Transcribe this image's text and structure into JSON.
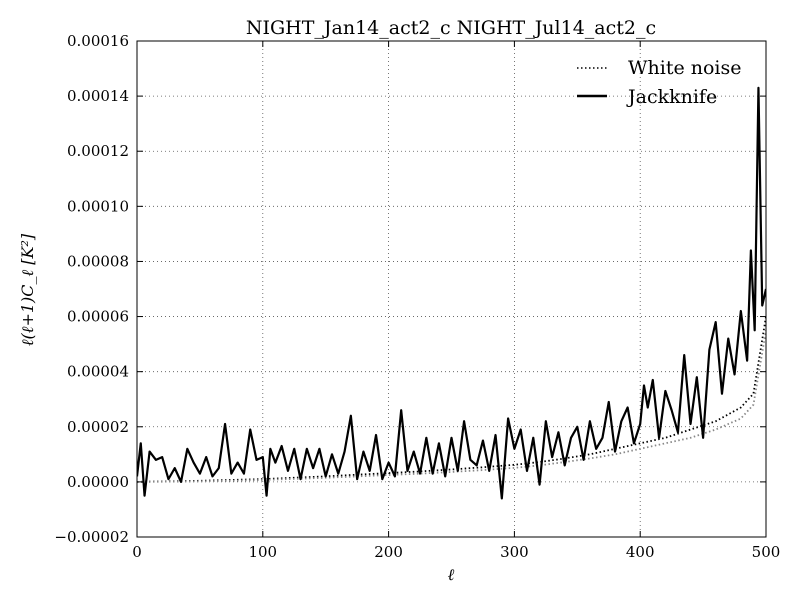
{
  "chart_data": {
    "type": "line",
    "title": "NIGHT_Jan14_act2_c NIGHT_Jul14_act2_c",
    "xlabel": "ℓ",
    "ylabel": "ℓ(ℓ+1)C_ℓ [K²]",
    "xlim": [
      0,
      500
    ],
    "ylim": [
      -2e-05,
      0.00016
    ],
    "x_ticks": [
      0,
      100,
      200,
      300,
      400,
      500
    ],
    "x_tick_labels": [
      "0",
      "100",
      "200",
      "300",
      "400",
      "500"
    ],
    "y_ticks": [
      -2e-05,
      0,
      2e-05,
      4e-05,
      6e-05,
      8e-05,
      0.0001,
      0.00012,
      0.00014,
      0.00016
    ],
    "y_tick_labels": [
      "−0.00002",
      "0.00000",
      "0.00002",
      "0.00004",
      "0.00006",
      "0.00008",
      "0.00010",
      "0.00012",
      "0.00014",
      "0.00016"
    ],
    "grid": true,
    "legend_position": "top-right",
    "series": [
      {
        "name": "White noise",
        "style": "dotted",
        "color": "#000000",
        "x": [
          0,
          25,
          50,
          75,
          100,
          125,
          150,
          175,
          200,
          225,
          250,
          275,
          300,
          320,
          340,
          360,
          380,
          400,
          420,
          440,
          460,
          480,
          490,
          500
        ],
        "y": [
          0.0,
          2e-07,
          4e-07,
          7e-07,
          1e-06,
          1.5e-06,
          2e-06,
          2.6e-06,
          3.2e-06,
          3.8e-06,
          4.5e-06,
          5.3e-06,
          6.2e-06,
          7.2e-06,
          8.5e-06,
          1e-05,
          1.2e-05,
          1.4e-05,
          1.6e-05,
          1.9e-05,
          2.2e-05,
          2.7e-05,
          3.2e-05,
          6e-05
        ]
      },
      {
        "name": "",
        "style": "dotted",
        "color": "#888888",
        "x": [
          0,
          25,
          50,
          75,
          100,
          125,
          150,
          175,
          200,
          225,
          250,
          275,
          300,
          320,
          340,
          360,
          380,
          400,
          420,
          440,
          460,
          480,
          490,
          500
        ],
        "y": [
          0.0,
          1e-07,
          2e-07,
          4e-07,
          7e-07,
          1.1e-06,
          1.5e-06,
          2e-06,
          2.5e-06,
          3e-06,
          3.6e-06,
          4.3e-06,
          5.1e-06,
          6e-06,
          7.2e-06,
          8.5e-06,
          1e-05,
          1.2e-05,
          1.4e-05,
          1.6e-05,
          1.9e-05,
          2.3e-05,
          2.8e-05,
          5.5e-05
        ]
      },
      {
        "name": "Jackknife",
        "style": "solid",
        "color": "#000000",
        "x": [
          0,
          3,
          6,
          10,
          15,
          20,
          25,
          30,
          35,
          40,
          45,
          50,
          55,
          60,
          65,
          70,
          75,
          80,
          85,
          90,
          95,
          100,
          103,
          106,
          110,
          115,
          120,
          125,
          130,
          135,
          140,
          145,
          150,
          155,
          160,
          165,
          170,
          175,
          180,
          185,
          190,
          195,
          200,
          205,
          210,
          215,
          220,
          225,
          230,
          235,
          240,
          245,
          250,
          255,
          260,
          265,
          270,
          275,
          280,
          285,
          290,
          295,
          300,
          305,
          310,
          315,
          320,
          325,
          330,
          335,
          340,
          345,
          350,
          355,
          360,
          365,
          370,
          375,
          380,
          385,
          390,
          395,
          400,
          403,
          406,
          410,
          415,
          420,
          425,
          430,
          435,
          440,
          445,
          450,
          455,
          460,
          465,
          470,
          475,
          480,
          485,
          488,
          491,
          494,
          497,
          500
        ],
        "y": [
          2e-06,
          1.4e-05,
          -5e-06,
          1.1e-05,
          8e-06,
          9e-06,
          1e-06,
          5e-06,
          0.0,
          1.2e-05,
          7e-06,
          3e-06,
          9e-06,
          2e-06,
          5e-06,
          2.1e-05,
          3e-06,
          7e-06,
          3e-06,
          1.9e-05,
          8e-06,
          9e-06,
          -5e-06,
          1.2e-05,
          7e-06,
          1.3e-05,
          4e-06,
          1.2e-05,
          1e-06,
          1.2e-05,
          5e-06,
          1.2e-05,
          2e-06,
          1e-05,
          3e-06,
          1.1e-05,
          2.4e-05,
          1e-06,
          1.1e-05,
          4e-06,
          1.7e-05,
          1e-06,
          7e-06,
          2e-06,
          2.6e-05,
          4e-06,
          1.1e-05,
          3e-06,
          1.6e-05,
          3e-06,
          1.4e-05,
          2e-06,
          1.6e-05,
          4e-06,
          2.2e-05,
          8e-06,
          6e-06,
          1.5e-05,
          4e-06,
          1.7e-05,
          -6e-06,
          2.3e-05,
          1.2e-05,
          1.9e-05,
          4e-06,
          1.6e-05,
          -1e-06,
          2.2e-05,
          9e-06,
          1.8e-05,
          6e-06,
          1.6e-05,
          2e-05,
          8e-06,
          2.2e-05,
          1.2e-05,
          1.6e-05,
          2.9e-05,
          1.1e-05,
          2.2e-05,
          2.7e-05,
          1.4e-05,
          2.1e-05,
          3.5e-05,
          2.7e-05,
          3.7e-05,
          1.6e-05,
          3.3e-05,
          2.6e-05,
          1.8e-05,
          4.6e-05,
          2.1e-05,
          3.8e-05,
          1.6e-05,
          4.8e-05,
          5.8e-05,
          3.2e-05,
          5.2e-05,
          3.9e-05,
          6.2e-05,
          4.4e-05,
          8.4e-05,
          5.5e-05,
          0.000143,
          6.4e-05,
          7e-05
        ]
      }
    ]
  }
}
